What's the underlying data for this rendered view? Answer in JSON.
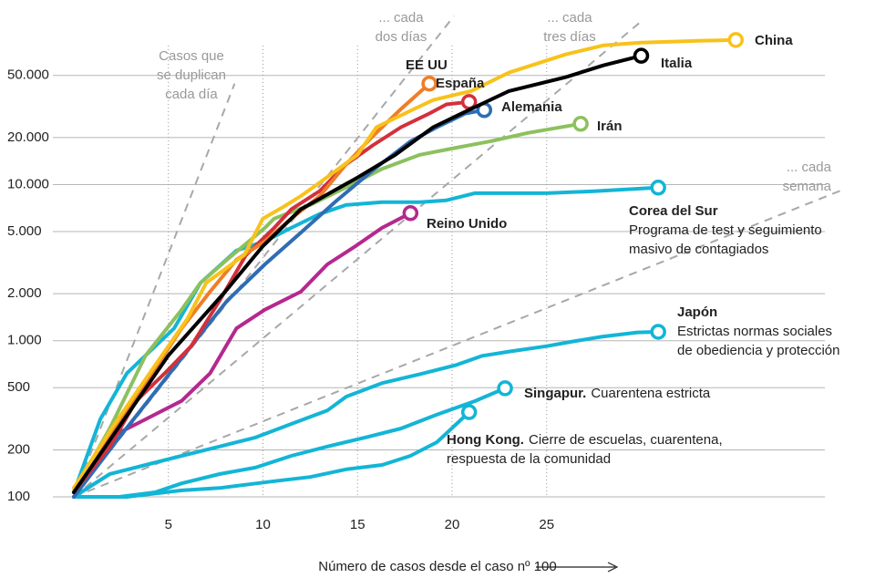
{
  "chart_data": {
    "type": "line",
    "log_y": true,
    "xlim": [
      0,
      42
    ],
    "ylim": [
      100,
      150000
    ],
    "xticks": [
      5,
      10,
      15,
      20,
      25
    ],
    "yticks": [
      100,
      200,
      500,
      {
        "value": 1000,
        "label": "1.000"
      },
      {
        "value": 2000,
        "label": "2.000"
      },
      {
        "value": 5000,
        "label": "5.000"
      },
      {
        "value": 10000,
        "label": "10.000"
      },
      {
        "value": 20000,
        "label": "20.000"
      },
      {
        "value": 50000,
        "label": "50.000"
      }
    ],
    "grid": true,
    "x_label": "Número de casos desde el caso nº 100",
    "reference_lines": [
      {
        "label": [
          "Casos que",
          "se duplican",
          "cada día"
        ],
        "x": [
          0,
          8.5
        ],
        "values": [
          100,
          44300
        ]
      },
      {
        "label": [
          "... cada",
          "dos días"
        ],
        "x": [
          0,
          20.1
        ],
        "values": [
          100,
          120000
        ]
      },
      {
        "label": [
          "... cada",
          "tres días"
        ],
        "x": [
          0,
          30.1
        ],
        "values": [
          100,
          113500
        ]
      },
      {
        "label": [
          "... cada",
          "semana"
        ],
        "x": [
          0,
          40.7
        ],
        "values": [
          100,
          9300
        ]
      }
    ],
    "series": [
      {
        "name": "Hong Kong.",
        "color": "#13b5d6",
        "notes": [
          "Cierre de escuelas, cuarentena,",
          "respuesta de la comunidad"
        ],
        "x": [
          0,
          2.8,
          5.7,
          7.7,
          10.6,
          12.5,
          14.4,
          16.3,
          17.8,
          19.2,
          20.9
        ],
        "values": [
          100,
          100,
          110,
          114,
          126,
          134,
          150,
          160,
          183,
          224,
          349
        ]
      },
      {
        "name": "Singapur.",
        "color": "#13b5d6",
        "notes": [
          "Cuarentena estricta"
        ],
        "x": [
          0,
          2.4,
          4.3,
          5.7,
          7.7,
          9.6,
          11.5,
          13.4,
          15.4,
          17.3,
          19.2,
          21.2,
          22.8
        ],
        "values": [
          100,
          100,
          107,
          122,
          140,
          154,
          183,
          210,
          240,
          274,
          336,
          410,
          496
        ]
      },
      {
        "name": "Japón",
        "color": "#13b5d6",
        "notes": [
          "Estrictas normas sociales",
          "de obediencia y protección"
        ],
        "x": [
          0,
          1.9,
          3.8,
          5.7,
          7.7,
          9.6,
          11.5,
          13.4,
          14.4,
          16.3,
          18.3,
          20.2,
          21.6,
          23.1,
          25,
          26.4,
          27.9,
          29.8,
          30.9
        ],
        "values": [
          100,
          140,
          160,
          183,
          210,
          240,
          293,
          357,
          438,
          535,
          611,
          698,
          800,
          855,
          923,
          989,
          1060,
          1130,
          1140
        ]
      },
      {
        "name": "Corea del Sur",
        "color": "#13b5d6",
        "notes": [
          "Programa de test y seguimiento",
          "masivo de contagiados"
        ],
        "x": [
          0,
          1.4,
          2.8,
          3.8,
          5.3,
          6.7,
          8.6,
          10.1,
          11.5,
          13,
          14.4,
          16.3,
          18.3,
          19.7,
          21.2,
          25,
          27.5,
          30.9
        ],
        "values": [
          107,
          314,
          617,
          806,
          1200,
          2350,
          3780,
          4330,
          5280,
          6480,
          7400,
          7720,
          7720,
          7930,
          8810,
          8810,
          9060,
          9560
        ]
      },
      {
        "name": "Reino Unido",
        "color": "#b5288f",
        "x": [
          0,
          1.9,
          3.8,
          5.7,
          7.2,
          8.6,
          10.1,
          12,
          13.4,
          14.9,
          16.3,
          17.8
        ],
        "values": [
          107,
          240,
          314,
          412,
          617,
          1200,
          1580,
          2060,
          3080,
          4040,
          5280,
          6560
        ]
      },
      {
        "name": "Irán",
        "color": "#8dc05f",
        "x": [
          0,
          1.9,
          3.8,
          5.7,
          6.7,
          8.1,
          10.1,
          10.6,
          12.5,
          14.5,
          16.3,
          18.3,
          20.2,
          22.1,
          24,
          26.8
        ],
        "values": [
          107,
          274,
          806,
          1580,
          2350,
          3300,
          5280,
          6060,
          7400,
          9740,
          12600,
          15500,
          17200,
          19000,
          21400,
          24500
        ]
      },
      {
        "name": "Alemania",
        "color": "#2e6db4",
        "x": [
          0,
          2.4,
          4.3,
          6.2,
          8.1,
          10.1,
          12,
          13.9,
          15.9,
          17.8,
          19.2,
          20.7,
          21.7
        ],
        "values": [
          100,
          240,
          470,
          923,
          1800,
          3080,
          4920,
          7900,
          12600,
          18900,
          23300,
          28500,
          30000
        ]
      },
      {
        "name": "España",
        "color": "#d3303c",
        "x": [
          0,
          1.9,
          3.3,
          4.8,
          6.2,
          7.7,
          9.1,
          10.6,
          11.5,
          13,
          14.4,
          15.8,
          17.3,
          18.8,
          19.7,
          20.9
        ],
        "values": [
          107,
          210,
          412,
          617,
          923,
          1800,
          3530,
          5280,
          6940,
          9090,
          13500,
          17800,
          23300,
          28500,
          32600,
          33800
        ]
      },
      {
        "name": "EE UU",
        "color": "#f07d26",
        "x": [
          0,
          1.9,
          3.8,
          5.7,
          7.2,
          8.6,
          10.1,
          11.5,
          13,
          14.4,
          15.8,
          17.3,
          18.8
        ],
        "values": [
          114,
          240,
          537,
          1200,
          2060,
          3300,
          4330,
          6060,
          8440,
          13500,
          20400,
          30500,
          44300
        ]
      },
      {
        "name": "China",
        "color": "#f8c21b",
        "x": [
          0,
          2,
          4,
          6,
          7,
          9,
          10,
          11,
          12,
          13,
          15,
          16,
          18,
          19,
          21,
          23,
          26,
          28,
          30,
          33,
          35
        ],
        "values": [
          114,
          274,
          617,
          1380,
          2350,
          3530,
          6060,
          7100,
          8440,
          10300,
          15500,
          23300,
          30500,
          34800,
          39700,
          52100,
          68100,
          77800,
          81000,
          83200,
          84300
        ]
      },
      {
        "name": "Italia",
        "color": "#000000",
        "x": [
          0,
          2,
          5,
          8,
          10,
          12,
          15,
          17,
          19,
          21,
          23,
          26,
          28,
          30
        ],
        "values": [
          107,
          240,
          806,
          2060,
          4040,
          6940,
          11100,
          15500,
          23300,
          30500,
          39700,
          48700,
          58000,
          66800
        ]
      }
    ]
  }
}
